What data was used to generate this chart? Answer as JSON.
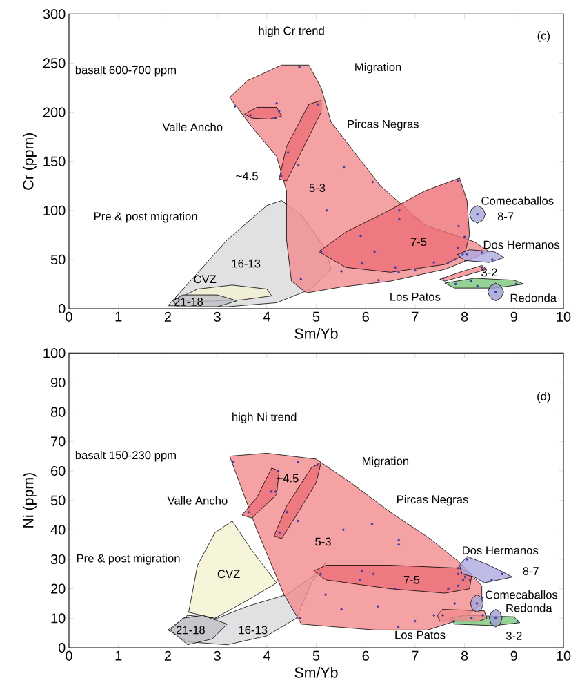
{
  "chart_data": [
    {
      "type": "scatter",
      "xlabel": "Sm/Yb",
      "ylabel": "Cr (ppm)",
      "xlim": [
        0,
        10
      ],
      "ylim": [
        0,
        300
      ],
      "xticks": [
        0,
        1,
        2,
        3,
        4,
        5,
        6,
        7,
        8,
        9,
        10
      ],
      "yticks": [
        0,
        50,
        100,
        150,
        200,
        250,
        300
      ],
      "annotations": [
        "(c)",
        "high Cr trend",
        "Migration",
        "basalt 600-700 ppm",
        "Pre & post migration",
        "Pircas Negras",
        "8-7"
      ],
      "series": [
        {
          "type": "area",
          "name": "16-13",
          "color": "#d9d9dd",
          "x": [
            2.0,
            2.4,
            3.2,
            4.0,
            4.3,
            4.7,
            5.2,
            5.3,
            4.9,
            4.2,
            3.2
          ],
          "values": [
            3,
            25,
            70,
            105,
            110,
            95,
            60,
            40,
            20,
            6,
            2
          ]
        },
        {
          "type": "area",
          "name": "CVZ",
          "color": "#f4f1cf",
          "x": [
            2.2,
            2.6,
            3.3,
            4.0,
            4.1,
            3.5,
            2.5
          ],
          "values": [
            10,
            20,
            24,
            20,
            13,
            9,
            7
          ]
        },
        {
          "type": "area",
          "name": "21-18",
          "color": "#bfc0c6",
          "x": [
            2.1,
            2.3,
            3.0,
            3.4,
            3.0,
            2.2
          ],
          "values": [
            8,
            14,
            14,
            8,
            2,
            2
          ]
        },
        {
          "type": "area",
          "name": "5-3",
          "color": "#f28b8f",
          "x": [
            3.25,
            3.6,
            4.3,
            4.85,
            5.1,
            5.3,
            6.3,
            7.2,
            8.2,
            8.5,
            7.6,
            6.5,
            5.5,
            4.8,
            4.5,
            4.4,
            4.4,
            4.2,
            3.7
          ],
          "values": [
            215,
            232,
            248,
            248,
            225,
            190,
            125,
            85,
            68,
            58,
            40,
            28,
            22,
            16,
            28,
            70,
            120,
            155,
            185
          ]
        },
        {
          "type": "area",
          "name": "7-5",
          "color": "#ec6f77",
          "x": [
            5.05,
            5.6,
            6.4,
            7.2,
            7.9,
            8.05,
            8.1,
            8.0,
            7.6,
            6.5,
            5.6
          ],
          "values": [
            58,
            78,
            98,
            120,
            133,
            110,
            75,
            55,
            45,
            37,
            42
          ]
        },
        {
          "type": "area",
          "name": "~4.5",
          "color": "#ec6f77",
          "x": [
            4.25,
            4.4,
            4.85,
            5.1,
            5.1,
            4.7,
            4.4
          ],
          "values": [
            132,
            165,
            208,
            212,
            200,
            160,
            130
          ]
        },
        {
          "type": "area",
          "name": "Valle Ancho",
          "color": "#ec6f77",
          "x": [
            3.55,
            3.8,
            4.2,
            4.3,
            4.05,
            3.7
          ],
          "values": [
            198,
            205,
            205,
            196,
            193,
            194
          ]
        },
        {
          "type": "area",
          "name": "Los Patos",
          "color": "#f28b8f",
          "x": [
            7.5,
            7.9,
            8.35,
            8.45,
            8.1,
            7.6
          ],
          "values": [
            30,
            37,
            44,
            40,
            35,
            28
          ]
        },
        {
          "type": "area",
          "name": "Dos Hermanos",
          "color": "#aeaae0",
          "x": [
            7.85,
            8.1,
            8.6,
            8.8,
            8.5,
            8.0
          ],
          "values": [
            55,
            60,
            58,
            52,
            47,
            49
          ]
        },
        {
          "type": "area",
          "name": "3-2",
          "color": "#7cc67c",
          "x": [
            7.6,
            8.2,
            9.0,
            9.2,
            8.6,
            7.8
          ],
          "values": [
            26,
            31,
            29,
            25,
            21,
            21
          ]
        },
        {
          "type": "area",
          "name": "Comecaballos",
          "color": "#a8a6da",
          "x": [
            8.1,
            8.15,
            8.26,
            8.37,
            8.42,
            8.37,
            8.26,
            8.15
          ],
          "values": [
            96,
            102,
            105,
            102,
            96,
            90,
            87,
            90
          ]
        },
        {
          "type": "area",
          "name": "Redonda",
          "color": "#a09fd4",
          "x": [
            8.47,
            8.52,
            8.63,
            8.74,
            8.79,
            8.74,
            8.63,
            8.52
          ],
          "values": [
            17,
            23,
            26,
            23,
            17,
            11,
            8,
            11
          ]
        },
        {
          "marker": "circle",
          "color": "#3a3aa8",
          "x": [
            4.66,
            3.36,
            4.2,
            4.25,
            5.03,
            4.43,
            4.29,
            4.64,
            5.56,
            6.14,
            5.21,
            5.9,
            5.1,
            6.18,
            5.93,
            5.51,
            4.69,
            7.87,
            6.68,
            6.68,
            7.88,
            8.0,
            7.87,
            6.6,
            7.0,
            7.38,
            7.67,
            7.8,
            6.67,
            6.26,
            7.96,
            8.05,
            8.35,
            8.56,
            7.57,
            8.35,
            7.82,
            8.13,
            8.26,
            9.04,
            8.26,
            8.63,
            3.67,
            4.18
          ],
          "values": [
            246,
            206,
            209,
            201,
            208,
            159,
            135,
            146,
            144,
            129,
            100,
            74,
            58,
            58,
            46,
            38,
            30,
            130,
            100,
            91,
            84,
            73,
            62,
            42,
            39,
            47,
            47,
            50,
            37,
            29,
            55,
            55,
            57,
            50,
            31,
            42,
            25,
            28,
            23,
            25,
            96,
            17,
            197,
            194
          ]
        }
      ]
    },
    {
      "type": "scatter",
      "xlabel": "Sm/Yb",
      "ylabel": "Ni (ppm)",
      "xlim": [
        0,
        10
      ],
      "ylim": [
        0,
        100
      ],
      "xticks": [
        0,
        1,
        2,
        3,
        4,
        5,
        6,
        7,
        8,
        9,
        10
      ],
      "yticks": [
        0,
        10,
        20,
        30,
        40,
        50,
        60,
        70,
        80,
        90,
        100
      ],
      "annotations": [
        "(d)",
        "high Ni trend",
        "Migration",
        "basalt 150-230 ppm",
        "Pre & post migration",
        "Pircas Negras",
        "8-7"
      ],
      "series": [
        {
          "type": "area",
          "name": "16-13",
          "color": "#d9d9dd",
          "x": [
            2.0,
            2.4,
            3.2,
            4.0,
            4.6,
            4.9,
            5.2,
            5.0,
            4.4,
            3.6,
            3.0,
            2.4
          ],
          "values": [
            6,
            2,
            1,
            4,
            10,
            22,
            29,
            25,
            18,
            14,
            10,
            11
          ]
        },
        {
          "type": "area",
          "name": "CVZ",
          "color": "#f4f1cf",
          "x": [
            2.42,
            2.6,
            2.95,
            3.3,
            3.7,
            4.2,
            3.6,
            2.95
          ],
          "values": [
            12,
            28,
            39,
            43,
            33,
            22,
            16,
            10
          ]
        },
        {
          "type": "area",
          "name": "21-18",
          "color": "#bfc0c6",
          "x": [
            2.05,
            2.3,
            2.7,
            3.2,
            2.9,
            2.4
          ],
          "values": [
            6,
            10,
            11,
            8,
            3,
            1
          ]
        },
        {
          "type": "area",
          "name": "5-3",
          "color": "#f28b8f",
          "x": [
            3.25,
            4.0,
            5.0,
            5.7,
            6.5,
            7.3,
            7.9,
            8.35,
            8.35,
            8.0,
            7.25,
            6.2,
            4.7,
            4.35,
            3.8
          ],
          "values": [
            65,
            66,
            64,
            56,
            46,
            37,
            29,
            21,
            15,
            10,
            6,
            6,
            8,
            18,
            40
          ]
        },
        {
          "type": "area",
          "name": "7-5",
          "color": "#ec6f77",
          "x": [
            4.95,
            5.2,
            6.5,
            7.9,
            8.15,
            8.1,
            7.6,
            6.5,
            5.2
          ],
          "values": [
            26,
            28,
            28,
            27,
            25,
            20,
            18.5,
            20,
            23
          ]
        },
        {
          "type": "area",
          "name": "~4.5",
          "color": "#ec6f77",
          "x": [
            4.15,
            4.4,
            4.9,
            5.1,
            5.0,
            4.6,
            4.3
          ],
          "values": [
            38,
            48,
            61,
            63,
            56,
            45,
            37
          ]
        },
        {
          "type": "area",
          "name": "Valle Ancho",
          "color": "#ec6f77",
          "x": [
            3.5,
            3.8,
            4.1,
            4.25,
            4.2,
            3.7
          ],
          "values": [
            45,
            51,
            61,
            60,
            52,
            44
          ]
        },
        {
          "type": "area",
          "name": "Dos Hermanos",
          "color": "#aeaae0",
          "x": [
            7.9,
            8.05,
            8.5,
            8.97,
            8.4,
            8.2,
            7.95
          ],
          "values": [
            28,
            31,
            28,
            24,
            22,
            24,
            25
          ]
        },
        {
          "type": "area",
          "name": "3-2",
          "color": "#7cc67c",
          "x": [
            7.7,
            8.0,
            9.0,
            9.12,
            8.6,
            7.8
          ],
          "values": [
            10,
            11,
            10.5,
            8.5,
            7.5,
            8
          ]
        },
        {
          "type": "area",
          "name": "Los Patos",
          "color": "#f28b8f",
          "x": [
            7.45,
            7.55,
            8.4,
            8.45,
            8.3,
            7.5
          ],
          "values": [
            11,
            13,
            12.5,
            10,
            9,
            9
          ]
        },
        {
          "type": "area",
          "name": "Comecaballos",
          "color": "#a8a6da",
          "x": [
            8.12,
            8.16,
            8.25,
            8.34,
            8.38,
            8.34,
            8.25,
            8.16
          ],
          "values": [
            15,
            17,
            18,
            17,
            15,
            13,
            12,
            13
          ]
        },
        {
          "type": "area",
          "name": "Redonda",
          "color": "#a09fd4",
          "x": [
            8.5,
            8.54,
            8.63,
            8.72,
            8.76,
            8.72,
            8.63,
            8.54
          ],
          "values": [
            10,
            12,
            13,
            12,
            10,
            8,
            7,
            8
          ]
        },
        {
          "marker": "circle",
          "color": "#3a3aa8",
          "x": [
            3.32,
            4.63,
            5.02,
            4.23,
            4.18,
            4.09,
            3.63,
            4.41,
            4.63,
            4.26,
            5.55,
            6.13,
            5.09,
            5.93,
            6.16,
            5.88,
            5.19,
            5.51,
            4.67,
            6.67,
            6.67,
            6.59,
            6.25,
            6.66,
            7.0,
            7.38,
            7.67,
            7.8,
            7.87,
            7.87,
            8.01,
            7.97,
            8.11,
            7.87,
            8.05,
            8.55,
            8.76,
            8.25,
            8.36,
            7.56,
            8.14,
            8.37,
            8.63,
            9.07,
            7.79
          ],
          "values": [
            63,
            63,
            62,
            60,
            53,
            53,
            46,
            46,
            43,
            39,
            40,
            42,
            25,
            26,
            25,
            23,
            18,
            13,
            10,
            36.5,
            35,
            20,
            14,
            7,
            9,
            11,
            20,
            15,
            27,
            25,
            24,
            23,
            23,
            21,
            30,
            23,
            25,
            15,
            17,
            11,
            10,
            11,
            10,
            9,
            9
          ]
        }
      ]
    }
  ]
}
